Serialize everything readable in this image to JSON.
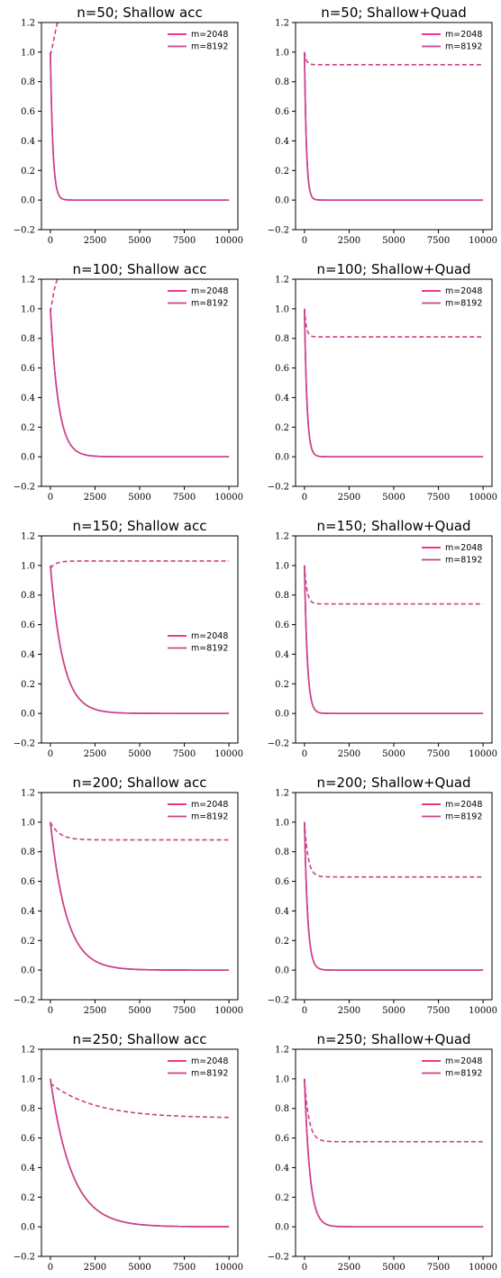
{
  "colors": {
    "m2048": "#ee1a7f",
    "m8192": "#c8438a",
    "axis": "#000000",
    "background": "#ffffff"
  },
  "chart_data": [
    {
      "type": "line",
      "title": "n=50; Shallow acc",
      "xlim": [
        -500,
        10500
      ],
      "ylim": [
        -0.2,
        1.2
      ],
      "xticks": [
        0,
        2500,
        5000,
        7500,
        10000
      ],
      "yticks": [
        -0.2,
        0.0,
        0.2,
        0.4,
        0.6,
        0.8,
        1.0,
        1.2
      ],
      "xtick_labels": [
        "0",
        "2500",
        "5000",
        "7500",
        "10000"
      ],
      "ytick_labels": [
        "−0.2",
        "0.0",
        "0.2",
        "0.4",
        "0.6",
        "0.8",
        "1.0",
        "1.2"
      ],
      "legend": "top-right",
      "grid": false,
      "legend_entries": [
        "m=2048",
        "m=8192"
      ],
      "series": [
        {
          "name": "m=2048",
          "style": "solid",
          "color": "#ee1a7f",
          "start": 1.0,
          "decay_tau": 140,
          "plateau": 0.0
        },
        {
          "name": "m=8192",
          "style": "solid",
          "color": "#c8438a",
          "start": 1.0,
          "decay_tau": 140,
          "plateau": 0.0
        },
        {
          "name": "",
          "style": "dashed",
          "color": "#c8438a",
          "points": [
            [
              0,
              0.98
            ],
            [
              100,
              1.03
            ],
            [
              200,
              1.09
            ],
            [
              300,
              1.15
            ],
            [
              400,
              1.2
            ]
          ]
        }
      ]
    },
    {
      "type": "line",
      "title": "n=50; Shallow+Quad",
      "xlim": [
        -500,
        10500
      ],
      "ylim": [
        -0.2,
        1.2
      ],
      "xticks": [
        0,
        2500,
        5000,
        7500,
        10000
      ],
      "yticks": [
        -0.2,
        0.0,
        0.2,
        0.4,
        0.6,
        0.8,
        1.0,
        1.2
      ],
      "xtick_labels": [
        "0",
        "2500",
        "5000",
        "7500",
        "10000"
      ],
      "ytick_labels": [
        "−0.2",
        "0.0",
        "0.2",
        "0.4",
        "0.6",
        "0.8",
        "1.0",
        "1.2"
      ],
      "legend": "top-right",
      "grid": false,
      "legend_entries": [
        "m=2048",
        "m=8192"
      ],
      "series": [
        {
          "name": "m=2048",
          "style": "solid",
          "color": "#ee1a7f",
          "start": 1.0,
          "decay_tau": 110,
          "plateau": 0.0
        },
        {
          "name": "m=8192",
          "style": "solid",
          "color": "#c8438a",
          "start": 1.0,
          "decay_tau": 110,
          "plateau": 0.0
        },
        {
          "name": "",
          "style": "dashed",
          "color": "#c8438a",
          "start": 1.0,
          "decay_tau": 110,
          "plateau": 0.915
        }
      ]
    },
    {
      "type": "line",
      "title": "n=100; Shallow acc",
      "xlim": [
        -500,
        10500
      ],
      "ylim": [
        -0.2,
        1.2
      ],
      "xticks": [
        0,
        2500,
        5000,
        7500,
        10000
      ],
      "yticks": [
        -0.2,
        0.0,
        0.2,
        0.4,
        0.6,
        0.8,
        1.0,
        1.2
      ],
      "xtick_labels": [
        "0",
        "2500",
        "5000",
        "7500",
        "10000"
      ],
      "ytick_labels": [
        "−0.2",
        "0.0",
        "0.2",
        "0.4",
        "0.6",
        "0.8",
        "1.0",
        "1.2"
      ],
      "legend": "top-right",
      "grid": false,
      "legend_entries": [
        "m=2048",
        "m=8192"
      ],
      "series": [
        {
          "name": "m=2048",
          "style": "solid",
          "color": "#ee1a7f",
          "start": 1.0,
          "decay_tau": 450,
          "plateau": 0.0
        },
        {
          "name": "m=8192",
          "style": "solid",
          "color": "#c8438a",
          "start": 1.0,
          "decay_tau": 450,
          "plateau": 0.0
        },
        {
          "name": "",
          "style": "dashed",
          "color": "#c8438a",
          "points": [
            [
              0,
              0.98
            ],
            [
              100,
              1.05
            ],
            [
              200,
              1.12
            ],
            [
              300,
              1.17
            ],
            [
              400,
              1.2
            ]
          ]
        }
      ]
    },
    {
      "type": "line",
      "title": "n=100; Shallow+Quad",
      "xlim": [
        -500,
        10500
      ],
      "ylim": [
        -0.2,
        1.2
      ],
      "xticks": [
        0,
        2500,
        5000,
        7500,
        10000
      ],
      "yticks": [
        -0.2,
        0.0,
        0.2,
        0.4,
        0.6,
        0.8,
        1.0,
        1.2
      ],
      "xtick_labels": [
        "0",
        "2500",
        "5000",
        "7500",
        "10000"
      ],
      "ytick_labels": [
        "−0.2",
        "0.0",
        "0.2",
        "0.4",
        "0.6",
        "0.8",
        "1.0",
        "1.2"
      ],
      "legend": "top-right",
      "grid": false,
      "legend_entries": [
        "m=2048",
        "m=8192"
      ],
      "series": [
        {
          "name": "m=2048",
          "style": "solid",
          "color": "#ee1a7f",
          "start": 1.0,
          "decay_tau": 140,
          "plateau": 0.0
        },
        {
          "name": "m=8192",
          "style": "solid",
          "color": "#c8438a",
          "start": 1.0,
          "decay_tau": 140,
          "plateau": 0.0
        },
        {
          "name": "",
          "style": "dashed",
          "color": "#c8438a",
          "start": 1.0,
          "decay_tau": 110,
          "plateau": 0.81
        }
      ]
    },
    {
      "type": "line",
      "title": "n=150; Shallow acc",
      "xlim": [
        -500,
        10500
      ],
      "ylim": [
        -0.2,
        1.2
      ],
      "xticks": [
        0,
        2500,
        5000,
        7500,
        10000
      ],
      "yticks": [
        -0.2,
        0.0,
        0.2,
        0.4,
        0.6,
        0.8,
        1.0,
        1.2
      ],
      "xtick_labels": [
        "0",
        "2500",
        "5000",
        "7500",
        "10000"
      ],
      "ytick_labels": [
        "−0.2",
        "0.0",
        "0.2",
        "0.4",
        "0.6",
        "0.8",
        "1.0",
        "1.2"
      ],
      "legend": "center-right",
      "grid": false,
      "legend_entries": [
        "m=2048",
        "m=8192"
      ],
      "series": [
        {
          "name": "m=2048",
          "style": "solid",
          "color": "#ee1a7f",
          "start": 1.0,
          "decay_tau": 700,
          "plateau": 0.0
        },
        {
          "name": "m=8192",
          "style": "solid",
          "color": "#c8438a",
          "start": 1.0,
          "decay_tau": 700,
          "plateau": 0.0
        },
        {
          "name": "",
          "style": "dashed",
          "color": "#c8438a",
          "start": 0.98,
          "decay_tau": 300,
          "plateau": 1.03
        }
      ]
    },
    {
      "type": "line",
      "title": "n=150; Shallow+Quad",
      "xlim": [
        -500,
        10500
      ],
      "ylim": [
        -0.2,
        1.2
      ],
      "xticks": [
        0,
        2500,
        5000,
        7500,
        10000
      ],
      "yticks": [
        -0.2,
        0.0,
        0.2,
        0.4,
        0.6,
        0.8,
        1.0,
        1.2
      ],
      "xtick_labels": [
        "0",
        "2500",
        "5000",
        "7500",
        "10000"
      ],
      "ytick_labels": [
        "−0.2",
        "0.0",
        "0.2",
        "0.4",
        "0.6",
        "0.8",
        "1.0",
        "1.2"
      ],
      "legend": "top-right",
      "grid": false,
      "legend_entries": [
        "m=2048",
        "m=8192"
      ],
      "series": [
        {
          "name": "m=2048",
          "style": "solid",
          "color": "#ee1a7f",
          "start": 1.0,
          "decay_tau": 160,
          "plateau": 0.0
        },
        {
          "name": "m=8192",
          "style": "solid",
          "color": "#c8438a",
          "start": 1.0,
          "decay_tau": 160,
          "plateau": 0.0
        },
        {
          "name": "",
          "style": "dashed",
          "color": "#c8438a",
          "start": 1.0,
          "decay_tau": 140,
          "plateau": 0.74
        }
      ]
    },
    {
      "type": "line",
      "title": "n=200; Shallow acc",
      "xlim": [
        -500,
        10500
      ],
      "ylim": [
        -0.2,
        1.2
      ],
      "xticks": [
        0,
        2500,
        5000,
        7500,
        10000
      ],
      "yticks": [
        -0.2,
        0.0,
        0.2,
        0.4,
        0.6,
        0.8,
        1.0,
        1.2
      ],
      "xtick_labels": [
        "0",
        "2500",
        "5000",
        "7500",
        "10000"
      ],
      "ytick_labels": [
        "−0.2",
        "0.0",
        "0.2",
        "0.4",
        "0.6",
        "0.8",
        "1.0",
        "1.2"
      ],
      "legend": "top-right",
      "grid": false,
      "legend_entries": [
        "m=2048",
        "m=8192"
      ],
      "series": [
        {
          "name": "m=2048",
          "style": "solid",
          "color": "#ee1a7f",
          "start": 1.0,
          "decay_tau": 900,
          "plateau": 0.0
        },
        {
          "name": "m=8192",
          "style": "solid",
          "color": "#c8438a",
          "start": 1.0,
          "decay_tau": 900,
          "plateau": 0.0
        },
        {
          "name": "",
          "style": "dashed",
          "color": "#c8438a",
          "start": 1.0,
          "decay_tau": 500,
          "plateau": 0.88
        }
      ]
    },
    {
      "type": "line",
      "title": "n=200; Shallow+Quad",
      "xlim": [
        -500,
        10500
      ],
      "ylim": [
        -0.2,
        1.2
      ],
      "xticks": [
        0,
        2500,
        5000,
        7500,
        10000
      ],
      "yticks": [
        -0.2,
        0.0,
        0.2,
        0.4,
        0.6,
        0.8,
        1.0,
        1.2
      ],
      "xtick_labels": [
        "0",
        "2500",
        "5000",
        "7500",
        "10000"
      ],
      "ytick_labels": [
        "−0.2",
        "0.0",
        "0.2",
        "0.4",
        "0.6",
        "0.8",
        "1.0",
        "1.2"
      ],
      "legend": "top-right",
      "grid": false,
      "legend_entries": [
        "m=2048",
        "m=8192"
      ],
      "series": [
        {
          "name": "m=2048",
          "style": "solid",
          "color": "#ee1a7f",
          "start": 1.0,
          "decay_tau": 180,
          "plateau": 0.0
        },
        {
          "name": "m=8192",
          "style": "solid",
          "color": "#c8438a",
          "start": 1.0,
          "decay_tau": 180,
          "plateau": 0.0
        },
        {
          "name": "",
          "style": "dashed",
          "color": "#c8438a",
          "start": 1.0,
          "decay_tau": 200,
          "plateau": 0.63
        }
      ]
    },
    {
      "type": "line",
      "title": "n=250; Shallow acc",
      "xlim": [
        -500,
        10500
      ],
      "ylim": [
        -0.2,
        1.2
      ],
      "xticks": [
        0,
        2500,
        5000,
        7500,
        10000
      ],
      "yticks": [
        -0.2,
        0.0,
        0.2,
        0.4,
        0.6,
        0.8,
        1.0,
        1.2
      ],
      "xtick_labels": [
        "0",
        "2500",
        "5000",
        "7500",
        "10000"
      ],
      "ytick_labels": [
        "−0.2",
        "0.0",
        "0.2",
        "0.4",
        "0.6",
        "0.8",
        "1.0",
        "1.2"
      ],
      "legend": "top-right",
      "grid": false,
      "legend_entries": [
        "m=2048",
        "m=8192"
      ],
      "series": [
        {
          "name": "m=2048",
          "style": "solid",
          "color": "#ee1a7f",
          "start": 1.0,
          "decay_tau": 1200,
          "plateau": 0.0
        },
        {
          "name": "m=8192",
          "style": "solid",
          "color": "#c8438a",
          "start": 1.0,
          "decay_tau": 1200,
          "plateau": 0.0
        },
        {
          "name": "",
          "style": "dashed",
          "color": "#c8438a",
          "start": 0.97,
          "decay_tau": 2500,
          "plateau": 0.735
        }
      ]
    },
    {
      "type": "line",
      "title": "n=250; Shallow+Quad",
      "xlim": [
        -500,
        10500
      ],
      "ylim": [
        -0.2,
        1.2
      ],
      "xticks": [
        0,
        2500,
        5000,
        7500,
        10000
      ],
      "yticks": [
        -0.2,
        0.0,
        0.2,
        0.4,
        0.6,
        0.8,
        1.0,
        1.2
      ],
      "xtick_labels": [
        "0",
        "2500",
        "5000",
        "7500",
        "10000"
      ],
      "ytick_labels": [
        "−0.2",
        "0.0",
        "0.2",
        "0.4",
        "0.6",
        "0.8",
        "1.0",
        "1.2"
      ],
      "legend": "top-right",
      "grid": false,
      "legend_entries": [
        "m=2048",
        "m=8192"
      ],
      "series": [
        {
          "name": "m=2048",
          "style": "solid",
          "color": "#ee1a7f",
          "start": 1.0,
          "decay_tau": 300,
          "plateau": 0.0
        },
        {
          "name": "m=8192",
          "style": "solid",
          "color": "#c8438a",
          "start": 1.0,
          "decay_tau": 300,
          "plateau": 0.0
        },
        {
          "name": "",
          "style": "dashed",
          "color": "#c8438a",
          "start": 1.0,
          "decay_tau": 250,
          "plateau": 0.575
        }
      ]
    }
  ]
}
